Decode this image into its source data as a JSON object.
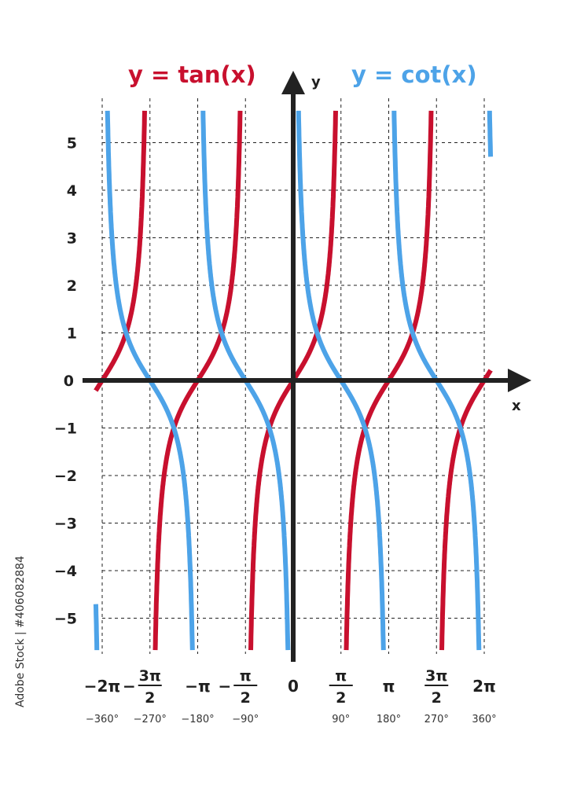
{
  "chart_data": {
    "type": "line",
    "title": "",
    "xlabel": "x",
    "ylabel": "y",
    "xlim_degrees": [
      -360,
      360
    ],
    "ylim": [
      -5.5,
      5.5
    ],
    "grid": "dashed",
    "x_ticks": [
      {
        "deg": -360,
        "label": "−2π",
        "label_degrees": "−360°"
      },
      {
        "deg": -270,
        "label_num": "3π",
        "label_den": "2",
        "negative": true,
        "label_degrees": "−270°"
      },
      {
        "deg": -180,
        "label": "−π",
        "label_degrees": "−180°"
      },
      {
        "deg": -90,
        "label_num": "π",
        "label_den": "2",
        "negative": true,
        "label_degrees": "−90°"
      },
      {
        "deg": 0,
        "label": "0",
        "label_degrees": ""
      },
      {
        "deg": 90,
        "label_num": "π",
        "label_den": "2",
        "negative": false,
        "label_degrees": "90°"
      },
      {
        "deg": 180,
        "label": "π",
        "label_degrees": "180°"
      },
      {
        "deg": 270,
        "label_num": "3π",
        "label_den": "2",
        "negative": false,
        "label_degrees": "270°"
      },
      {
        "deg": 360,
        "label": "2π",
        "label_degrees": "360°"
      }
    ],
    "y_ticks": [
      {
        "value": 5,
        "label": "5"
      },
      {
        "value": 4,
        "label": "4"
      },
      {
        "value": 3,
        "label": "3"
      },
      {
        "value": 2,
        "label": "2"
      },
      {
        "value": 1,
        "label": "1"
      },
      {
        "value": 0,
        "label": "0"
      },
      {
        "value": -1,
        "label": "−1"
      },
      {
        "value": -2,
        "label": "−2"
      },
      {
        "value": -3,
        "label": "−3"
      },
      {
        "value": -4,
        "label": "−4"
      },
      {
        "value": -5,
        "label": "−5"
      }
    ],
    "series": [
      {
        "name": "y = tan(x)",
        "function": "tan",
        "color": "#c8102e"
      },
      {
        "name": "y = cot(x)",
        "function": "cot",
        "color": "#4da3e8"
      }
    ]
  },
  "watermark_side": "Adobe Stock | #406082884"
}
